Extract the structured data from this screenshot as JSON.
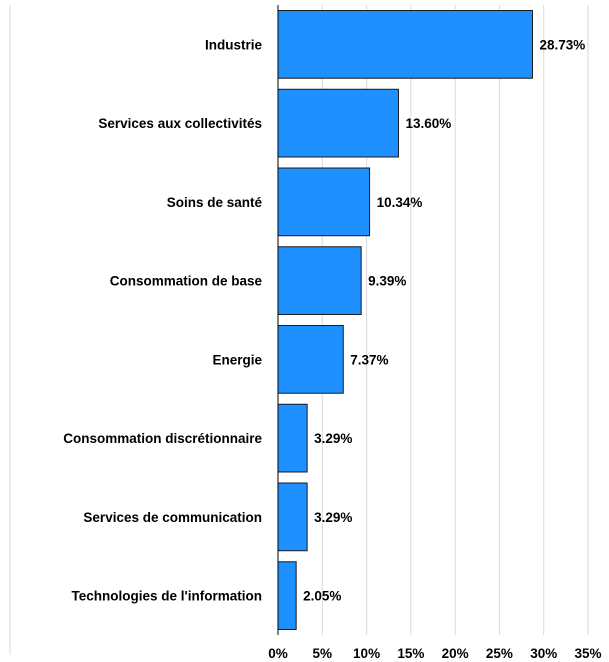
{
  "chart_data": {
    "type": "bar",
    "orientation": "horizontal",
    "categories": [
      "Industrie",
      "Services aux collectivités",
      "Soins de santé",
      "Consommation de base",
      "Energie",
      "Consommation discrétionnaire",
      "Services de communication",
      "Technologies de l'information"
    ],
    "values": [
      28.73,
      13.6,
      10.34,
      9.39,
      7.37,
      3.29,
      3.29,
      2.05
    ],
    "value_labels": [
      "28.73%",
      "13.60%",
      "10.34%",
      "9.39%",
      "7.37%",
      "3.29%",
      "3.29%",
      "2.05%"
    ],
    "x_ticks": [
      "0%",
      "5%",
      "10%",
      "15%",
      "20%",
      "25%",
      "30%",
      "35%"
    ],
    "xlim": [
      0,
      35
    ],
    "grid": "vertical",
    "bar_color": "#1e90ff",
    "title": "",
    "xlabel": "",
    "ylabel": ""
  }
}
